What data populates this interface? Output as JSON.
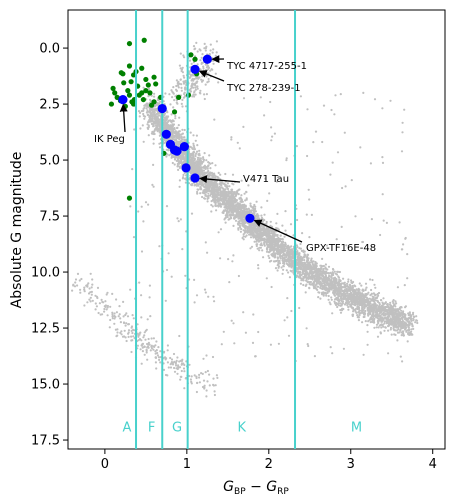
{
  "chart_data": {
    "type": "scatter",
    "xlabel": "G_BP − G_RP",
    "ylabel": "Absolute G magnitude",
    "xlim": [
      -0.45,
      4.15
    ],
    "ylim": [
      17.9,
      -1.7
    ],
    "y_inverted": true,
    "grid": false,
    "legend": "none",
    "x_ticks": [
      0,
      1,
      2,
      3,
      4
    ],
    "y_ticks": [
      0.0,
      2.5,
      5.0,
      7.5,
      10.0,
      12.5,
      15.0,
      17.5
    ],
    "spectral_boundaries": [
      0.38,
      0.7,
      1.01,
      2.32
    ],
    "spectral_labels": [
      {
        "label": "A",
        "x": 0.27,
        "y": 16.9
      },
      {
        "label": "F",
        "x": 0.57,
        "y": 16.9
      },
      {
        "label": "G",
        "x": 0.88,
        "y": 16.9
      },
      {
        "label": "K",
        "x": 1.67,
        "y": 16.9
      },
      {
        "label": "M",
        "x": 3.07,
        "y": 16.9
      }
    ],
    "series": [
      {
        "color": "#c0c0c0",
        "marker": "small dot",
        "description_points_generated": "field star main sequence (~6000 pts) plus white-dwarf sequence",
        "main_sequence": [
          [
            0.55,
            2.6
          ],
          [
            0.75,
            3.9
          ],
          [
            1.0,
            5.0
          ],
          [
            1.2,
            6.0
          ],
          [
            1.5,
            6.9
          ],
          [
            1.8,
            8.0
          ],
          [
            2.1,
            9.0
          ],
          [
            2.5,
            10.1
          ],
          [
            2.9,
            11.0
          ],
          [
            3.3,
            11.8
          ],
          [
            3.7,
            12.5
          ]
        ],
        "giant_branch": [
          [
            0.95,
            2.1
          ],
          [
            1.1,
            1.2
          ],
          [
            1.25,
            0.3
          ]
        ],
        "white_dwarf": [
          [
            -0.3,
            10.5
          ],
          [
            0.0,
            11.5
          ],
          [
            0.3,
            12.6
          ],
          [
            0.6,
            13.5
          ],
          [
            0.9,
            14.4
          ],
          [
            1.3,
            15.0
          ]
        ]
      },
      {
        "color": "#008000",
        "marker": "dot",
        "points": [
          [
            0.3,
            0.8
          ],
          [
            0.45,
            0.9
          ],
          [
            0.35,
            1.2
          ],
          [
            0.5,
            1.4
          ],
          [
            0.62,
            1.6
          ],
          [
            0.2,
            1.1
          ],
          [
            0.4,
            1.7
          ],
          [
            0.55,
            2.0
          ],
          [
            0.1,
            1.8
          ],
          [
            0.3,
            2.1
          ],
          [
            0.47,
            2.3
          ],
          [
            0.25,
            2.6
          ],
          [
            0.6,
            2.4
          ],
          [
            0.15,
            2.2
          ],
          [
            0.35,
            2.5
          ],
          [
            0.08,
            2.5
          ],
          [
            0.5,
            1.9
          ],
          [
            0.42,
            2.1
          ],
          [
            0.32,
            1.5
          ],
          [
            0.28,
            1.9
          ],
          [
            0.53,
            1.65
          ],
          [
            0.19,
            2.35
          ],
          [
            0.33,
            2.4
          ],
          [
            0.45,
            2.0
          ],
          [
            0.6,
            1.3
          ],
          [
            0.12,
            2.0
          ],
          [
            0.38,
            1.05
          ],
          [
            0.23,
            1.55
          ],
          [
            0.68,
            2.2
          ],
          [
            0.57,
            2.55
          ],
          [
            0.3,
            -0.2
          ],
          [
            0.48,
            -0.35
          ],
          [
            1.05,
            0.3
          ],
          [
            1.1,
            0.5
          ],
          [
            1.12,
            1.15
          ],
          [
            0.9,
            2.2
          ],
          [
            1.02,
            2.1
          ],
          [
            0.85,
            2.85
          ],
          [
            0.7,
            2.7
          ],
          [
            0.72,
            4.7
          ],
          [
            0.3,
            6.7
          ],
          [
            0.22,
            1.15
          ],
          [
            0.36,
            2.3
          ]
        ]
      },
      {
        "color": "#0000ff",
        "marker": "large dot",
        "points": [
          [
            0.22,
            2.3
          ],
          [
            0.7,
            2.7
          ],
          [
            0.75,
            3.85
          ],
          [
            0.8,
            4.3
          ],
          [
            0.85,
            4.55
          ],
          [
            0.88,
            4.6
          ],
          [
            0.97,
            4.4
          ],
          [
            0.99,
            5.35
          ],
          [
            1.1,
            5.8
          ],
          [
            1.25,
            0.5
          ],
          [
            1.1,
            0.95
          ],
          [
            1.77,
            7.6
          ]
        ]
      }
    ],
    "annotations": [
      {
        "text": "TYC 4717-255-1",
        "point": [
          1.25,
          0.5
        ]
      },
      {
        "text": "TYC 278-239-1",
        "point": [
          1.1,
          0.95
        ]
      },
      {
        "text": "IK Peg",
        "point": [
          0.22,
          2.3
        ]
      },
      {
        "text": "V471 Tau",
        "point": [
          1.1,
          5.8
        ]
      },
      {
        "text": "GPX-TF16E-48",
        "point": [
          1.77,
          7.6
        ]
      }
    ]
  }
}
